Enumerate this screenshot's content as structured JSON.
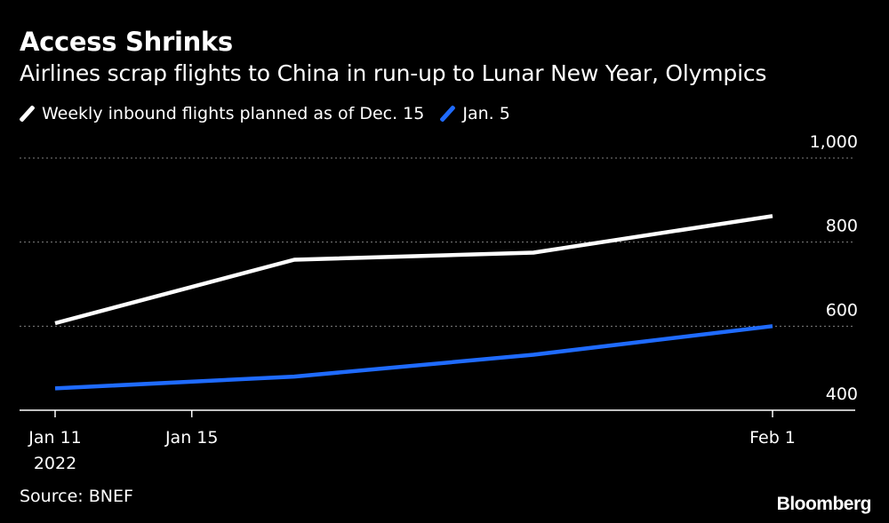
{
  "header": {
    "title": "Access Shrinks",
    "subtitle": "Airlines scrap flights to China in run-up to Lunar New Year, Olympics"
  },
  "footer": {
    "source": "Source: BNEF",
    "brand": "Bloomberg"
  },
  "colors": {
    "background": "#000000",
    "series_dec15": "#ffffff",
    "series_jan5": "#1f6bff",
    "grid": "#808080"
  },
  "chart_data": {
    "type": "line",
    "x": [
      "2022-01-11",
      "2022-01-18",
      "2022-01-25",
      "2022-02-01"
    ],
    "series": [
      {
        "name": "Weekly inbound flights planned as of Dec. 15",
        "values": [
          607,
          758,
          775,
          862
        ]
      },
      {
        "name": "Jan. 5",
        "values": [
          452,
          480,
          532,
          600
        ]
      }
    ],
    "x_ticks": [
      {
        "date": "2022-01-11",
        "label": "Jan 11",
        "sublabel": "2022"
      },
      {
        "date": "2022-01-15",
        "label": "Jan 15",
        "sublabel": ""
      },
      {
        "date": "2022-02-01",
        "label": "Feb 1",
        "sublabel": ""
      }
    ],
    "xlim": [
      "2022-01-11",
      "2022-02-01"
    ],
    "y_ticks": [
      400,
      600,
      800,
      1000
    ],
    "y_tick_labels": [
      "400",
      "600",
      "800",
      "1,000"
    ],
    "ylim": [
      400,
      1000
    ],
    "grid": true,
    "legend_position": "top-left",
    "y_axis_position": "right"
  }
}
